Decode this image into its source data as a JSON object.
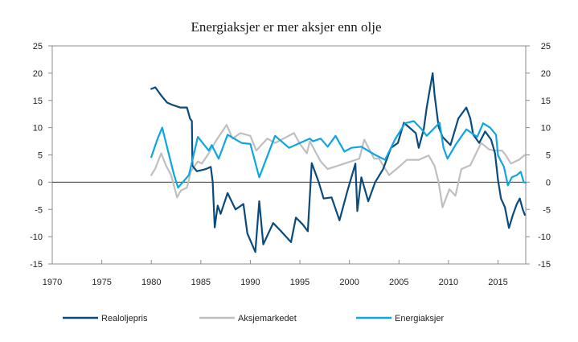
{
  "chart_data": {
    "type": "line",
    "title": "Energiaksjer er mer aksjer enn olje",
    "xlabel": "",
    "ylabel": "",
    "xlim": [
      1970,
      2017.8
    ],
    "ylim": [
      -15,
      25
    ],
    "x_ticks": [
      "1970",
      "1975",
      "1980",
      "1985",
      "1990",
      "1995",
      "2000",
      "2005",
      "2010",
      "2015"
    ],
    "y_ticks": [
      "-15",
      "-10",
      "-5",
      "0",
      "5",
      "10",
      "15",
      "20",
      "25"
    ],
    "y_tick_values": [
      -15,
      -10,
      -5,
      0,
      5,
      10,
      15,
      20,
      25
    ],
    "x_tick_values": [
      1970,
      1975,
      1980,
      1985,
      1990,
      1995,
      2000,
      2005,
      2010,
      2015
    ],
    "secondary_y_axis": true,
    "zero_line": true,
    "grid": false,
    "legend_position": "bottom",
    "series": [
      {
        "name": "Realoljepris",
        "color": "#0b4a7a",
        "points": [
          [
            1980.0,
            17.1
          ],
          [
            1980.4,
            17.4
          ],
          [
            1981.0,
            15.9
          ],
          [
            1981.6,
            14.6
          ],
          [
            1982.1,
            14.2
          ],
          [
            1982.9,
            13.7
          ],
          [
            1983.6,
            13.7
          ],
          [
            1983.9,
            11.7
          ],
          [
            1984.1,
            11.2
          ],
          [
            1984.15,
            3.0
          ],
          [
            1984.6,
            2.0
          ],
          [
            1985.5,
            2.4
          ],
          [
            1986.0,
            2.8
          ],
          [
            1986.2,
            0.0
          ],
          [
            1986.4,
            -8.3
          ],
          [
            1986.7,
            -4.3
          ],
          [
            1987.0,
            -5.8
          ],
          [
            1987.7,
            -2.0
          ],
          [
            1988.5,
            -5.0
          ],
          [
            1989.3,
            -4.0
          ],
          [
            1989.7,
            -9.4
          ],
          [
            1990.5,
            -12.8
          ],
          [
            1990.9,
            -3.5
          ],
          [
            1991.3,
            -11.4
          ],
          [
            1992.3,
            -7.5
          ],
          [
            1993.0,
            -8.8
          ],
          [
            1994.1,
            -11.0
          ],
          [
            1994.6,
            -6.5
          ],
          [
            1995.3,
            -7.8
          ],
          [
            1995.8,
            -9.0
          ],
          [
            1996.2,
            3.5
          ],
          [
            1996.9,
            0.0
          ],
          [
            1997.4,
            -3.0
          ],
          [
            1998.2,
            -2.8
          ],
          [
            1999.0,
            -7.0
          ],
          [
            1999.8,
            -1.6
          ],
          [
            2000.6,
            3.4
          ],
          [
            2000.8,
            -5.3
          ],
          [
            2001.2,
            0.9
          ],
          [
            2001.9,
            -3.5
          ],
          [
            2002.6,
            0.0
          ],
          [
            2003.4,
            2.4
          ],
          [
            2004.2,
            6.3
          ],
          [
            2004.9,
            7.2
          ],
          [
            2005.5,
            10.9
          ],
          [
            2006.7,
            9.0
          ],
          [
            2007.0,
            6.3
          ],
          [
            2007.5,
            9.7
          ],
          [
            2007.8,
            13.7
          ],
          [
            2008.4,
            20.0
          ],
          [
            2008.6,
            16.0
          ],
          [
            2009.0,
            10.2
          ],
          [
            2009.4,
            8.3
          ],
          [
            2010.2,
            6.8
          ],
          [
            2011.0,
            11.7
          ],
          [
            2011.8,
            13.7
          ],
          [
            2012.2,
            11.7
          ],
          [
            2012.5,
            8.7
          ],
          [
            2013.1,
            7.2
          ],
          [
            2013.7,
            9.3
          ],
          [
            2014.3,
            7.8
          ],
          [
            2014.7,
            5.3
          ],
          [
            2015.0,
            0.4
          ],
          [
            2015.3,
            -3.0
          ],
          [
            2015.7,
            -4.6
          ],
          [
            2016.1,
            -8.4
          ],
          [
            2016.5,
            -6.0
          ],
          [
            2016.9,
            -4.0
          ],
          [
            2017.2,
            -3.0
          ],
          [
            2017.5,
            -5.0
          ],
          [
            2017.7,
            -6.0
          ]
        ]
      },
      {
        "name": "Aksjemarkedet",
        "color": "#bfbfbf",
        "points": [
          [
            1980.0,
            1.3
          ],
          [
            1980.4,
            2.5
          ],
          [
            1981.0,
            5.3
          ],
          [
            1981.5,
            3.0
          ],
          [
            1982.0,
            1.3
          ],
          [
            1982.6,
            -2.8
          ],
          [
            1983.0,
            -1.5
          ],
          [
            1983.6,
            -1.0
          ],
          [
            1984.0,
            2.0
          ],
          [
            1984.7,
            3.8
          ],
          [
            1985.1,
            3.4
          ],
          [
            1985.8,
            5.3
          ],
          [
            1986.5,
            7.5
          ],
          [
            1987.6,
            10.5
          ],
          [
            1988.2,
            8.0
          ],
          [
            1989.0,
            9.0
          ],
          [
            1990.0,
            8.5
          ],
          [
            1990.6,
            5.8
          ],
          [
            1991.7,
            8.0
          ],
          [
            1992.5,
            7.2
          ],
          [
            1994.4,
            9.0
          ],
          [
            1995.0,
            7.0
          ],
          [
            1995.7,
            5.3
          ],
          [
            1996.0,
            7.5
          ],
          [
            1997.1,
            3.8
          ],
          [
            1997.8,
            2.4
          ],
          [
            2001.0,
            4.3
          ],
          [
            2001.5,
            7.8
          ],
          [
            2002.5,
            4.3
          ],
          [
            2003.0,
            4.3
          ],
          [
            2004.0,
            1.3
          ],
          [
            2005.0,
            2.8
          ],
          [
            2005.8,
            4.1
          ],
          [
            2007.0,
            4.1
          ],
          [
            2008.0,
            4.9
          ],
          [
            2008.6,
            3.0
          ],
          [
            2009.0,
            0.0
          ],
          [
            2009.4,
            -4.6
          ],
          [
            2010.1,
            -1.3
          ],
          [
            2010.7,
            -2.5
          ],
          [
            2011.3,
            2.4
          ],
          [
            2012.2,
            3.1
          ],
          [
            2013.3,
            7.2
          ],
          [
            2014.1,
            6.0
          ],
          [
            2014.6,
            5.8
          ],
          [
            2015.4,
            5.8
          ],
          [
            2015.8,
            4.9
          ],
          [
            2016.3,
            3.4
          ],
          [
            2017.1,
            4.1
          ],
          [
            2017.7,
            5.0
          ]
        ]
      },
      {
        "name": "Energiaksjer",
        "color": "#0ea5e0",
        "points": [
          [
            1980.0,
            4.6
          ],
          [
            1980.6,
            7.8
          ],
          [
            1981.1,
            10.0
          ],
          [
            1981.8,
            4.9
          ],
          [
            1982.3,
            1.3
          ],
          [
            1982.7,
            -1.0
          ],
          [
            1983.8,
            1.3
          ],
          [
            1984.7,
            8.3
          ],
          [
            1985.8,
            5.8
          ],
          [
            1986.1,
            6.8
          ],
          [
            1986.8,
            4.3
          ],
          [
            1987.7,
            8.7
          ],
          [
            1989.1,
            7.2
          ],
          [
            1990.0,
            7.0
          ],
          [
            1990.9,
            0.9
          ],
          [
            1992.5,
            8.5
          ],
          [
            1993.9,
            6.3
          ],
          [
            1996.0,
            8.0
          ],
          [
            1996.3,
            7.5
          ],
          [
            1997.1,
            8.0
          ],
          [
            1997.8,
            6.5
          ],
          [
            1998.6,
            8.5
          ],
          [
            1999.5,
            5.6
          ],
          [
            2000.2,
            6.3
          ],
          [
            2001.2,
            6.5
          ],
          [
            2002.6,
            5.0
          ],
          [
            2003.6,
            4.1
          ],
          [
            2004.6,
            7.8
          ],
          [
            2005.6,
            10.8
          ],
          [
            2006.5,
            11.2
          ],
          [
            2007.3,
            9.7
          ],
          [
            2007.8,
            8.5
          ],
          [
            2009.1,
            10.9
          ],
          [
            2009.5,
            6.3
          ],
          [
            2009.9,
            4.3
          ],
          [
            2010.7,
            6.8
          ],
          [
            2011.8,
            9.7
          ],
          [
            2012.9,
            8.3
          ],
          [
            2013.5,
            10.8
          ],
          [
            2014.2,
            10.0
          ],
          [
            2014.8,
            8.7
          ],
          [
            2015.0,
            4.9
          ],
          [
            2015.6,
            2.8
          ],
          [
            2016.0,
            -0.6
          ],
          [
            2016.4,
            0.9
          ],
          [
            2016.9,
            1.3
          ],
          [
            2017.3,
            1.9
          ],
          [
            2017.6,
            0.0
          ],
          [
            2017.8,
            -0.1
          ]
        ]
      }
    ]
  }
}
